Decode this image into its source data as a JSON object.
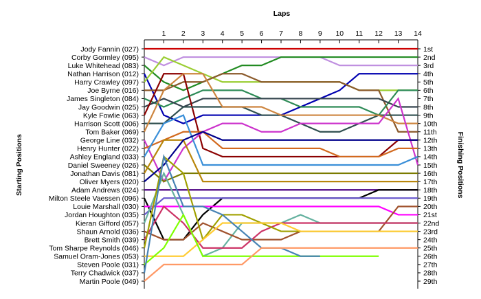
{
  "chart_data": {
    "type": "line",
    "title": "",
    "xlabel": "Laps",
    "ylabel_left": "Starting Positions",
    "ylabel_right": "Finishing Positions",
    "x": [
      0,
      1,
      2,
      3,
      4,
      5,
      6,
      7,
      8,
      9,
      10,
      11,
      12,
      13,
      14
    ],
    "x_tick_labels": [
      "1",
      "2",
      "3",
      "4",
      "5",
      "6",
      "7",
      "8",
      "9",
      "10",
      "11",
      "12",
      "13",
      "14"
    ],
    "ylim": [
      1,
      29
    ],
    "y_reversed": true,
    "grid": false,
    "starting_labels": [
      "Jody Fannin (027)",
      "Corby Gormley (095)",
      "Luke Whitehead (083)",
      "Nathan Harrison (012)",
      "Harry Crawley (097)",
      "Joe Byrne (016)",
      "James Singleton (084)",
      "Jay Goodwin (025)",
      "Kyle Fowlie (063)",
      "Harrison Scott (006)",
      "Tom Baker (069)",
      "George Line (032)",
      "Henry Hunter (022)",
      "Ashley England (033)",
      "Daniel Sweeney (026)",
      "Jonathan Davis (081)",
      "Oliver Myers (020)",
      "Adam Andrews (024)",
      "Milton Steele Vaessen (096)",
      "Louie Marshall (030)",
      "Jordan Houghton (035)",
      "Kieran Gifford (057)",
      "Shaun Arnold (036)",
      "Brett Smith (039)",
      "Tom Sharpe Reynolds (046)",
      "Samuel Oram-Jones (053)",
      "Steven Poole (031)",
      "Terry Chadwick (037)",
      "Martin Poole (049)"
    ],
    "finishing_labels": [
      "1st",
      "2nd",
      "3rd",
      "4th",
      "5th",
      "6th",
      "7th",
      "8th",
      "9th",
      "10th",
      "11th",
      "12th",
      "13th",
      "14th",
      "15th",
      "16th",
      "17th",
      "18th",
      "19th",
      "20th",
      "21st",
      "22nd",
      "23rd",
      "24th",
      "25th",
      "26th",
      "27th",
      "28th",
      "29th"
    ],
    "series": [
      {
        "color": "#cc0000",
        "values": [
          1,
          1,
          1,
          1,
          1,
          1,
          1,
          1,
          1,
          1,
          1,
          1,
          1,
          1,
          1
        ]
      },
      {
        "color": "#c090e0",
        "values": [
          2,
          3,
          2,
          2,
          2,
          2,
          2,
          2,
          2,
          2,
          3,
          3,
          3,
          3,
          3
        ]
      },
      {
        "color": "#228b22",
        "values": [
          3,
          5,
          6,
          5,
          4,
          3,
          3,
          2,
          2,
          2,
          2,
          2,
          2,
          2,
          2
        ]
      },
      {
        "color": "#0000b0",
        "values": [
          4,
          9,
          10,
          9,
          9,
          9,
          9,
          9,
          8,
          7,
          6,
          4,
          4,
          4,
          4
        ]
      },
      {
        "color": "#9acd32",
        "values": [
          5,
          2,
          3,
          4,
          5,
          5,
          5,
          5,
          5,
          5,
          5,
          6,
          6,
          6,
          6
        ]
      },
      {
        "color": "#8b5a2b",
        "values": [
          6,
          6,
          5,
          5,
          4,
          4,
          5,
          5,
          5,
          5,
          5,
          6,
          6,
          11,
          11
        ]
      },
      {
        "color": "#2e8b57",
        "values": [
          7,
          8,
          7,
          6,
          6,
          6,
          7,
          7,
          8,
          8,
          8,
          8,
          9,
          6,
          6
        ]
      },
      {
        "color": "#36454f",
        "values": [
          8,
          7,
          8,
          7,
          7,
          7,
          7,
          7,
          7,
          7,
          7,
          7,
          7,
          8,
          8
        ]
      },
      {
        "color": "#8b0000",
        "values": [
          9,
          4,
          4,
          13,
          14,
          14,
          14,
          14,
          14,
          14,
          14,
          14,
          14,
          12,
          12
        ]
      },
      {
        "color": "#2f4f4f",
        "values": [
          10,
          10,
          8,
          8,
          8,
          8,
          9,
          9,
          10,
          11,
          11,
          10,
          9,
          9,
          9
        ]
      },
      {
        "color": "#cd853f",
        "values": [
          11,
          6,
          4,
          4,
          8,
          8,
          8,
          9,
          9,
          9,
          9,
          9,
          9,
          10,
          10
        ]
      },
      {
        "color": "#cc33cc",
        "values": [
          12,
          17,
          13,
          11,
          10,
          10,
          11,
          11,
          10,
          10,
          10,
          10,
          10,
          7,
          15
        ]
      },
      {
        "color": "#d2691e",
        "values": [
          13,
          12,
          11,
          11,
          13,
          13,
          13,
          13,
          13,
          13,
          14,
          14,
          14,
          13,
          13
        ]
      },
      {
        "color": "#3a8fd8",
        "values": [
          14,
          10,
          9,
          15,
          15,
          15,
          15,
          15,
          15,
          15,
          15,
          15,
          15,
          15,
          14
        ]
      },
      {
        "color": "#7b7b00",
        "values": [
          15,
          17,
          16,
          16,
          16,
          16,
          16,
          16,
          16,
          16,
          16,
          16,
          16,
          16,
          16
        ]
      },
      {
        "color": "#b8860b",
        "values": [
          16,
          12,
          12,
          17,
          17,
          17,
          17,
          17,
          17,
          17,
          17,
          17,
          17,
          17,
          17
        ]
      },
      {
        "color": "#00008b",
        "values": [
          17,
          15,
          12,
          11,
          12,
          12,
          12,
          12,
          12,
          12,
          12,
          12,
          12,
          12,
          12
        ]
      },
      {
        "color": "#4b0082",
        "values": [
          18,
          18,
          18,
          18,
          18,
          18,
          18,
          18,
          18,
          18,
          18,
          18,
          18,
          18,
          18
        ]
      },
      {
        "color": "#000000",
        "values": [
          19,
          24,
          24,
          21,
          19,
          19,
          19,
          19,
          19,
          19,
          19,
          19,
          18,
          18,
          18
        ]
      },
      {
        "color": "#ff00ff",
        "values": [
          20,
          20,
          20,
          20,
          20,
          20,
          20,
          20,
          20,
          20,
          20,
          20,
          20,
          21,
          21
        ]
      },
      {
        "color": "#6a5acd",
        "values": [
          21,
          19,
          19,
          19,
          19,
          19,
          19,
          19,
          19,
          19,
          19,
          19,
          19,
          19,
          19
        ]
      },
      {
        "color": "#66b2a0",
        "values": [
          22,
          16,
          21,
          26,
          25,
          22,
          22,
          22,
          21,
          22,
          22,
          22,
          22,
          22,
          22
        ]
      },
      {
        "color": "#a0522d",
        "values": [
          23,
          24,
          24,
          22,
          23,
          24,
          24,
          24,
          23,
          23,
          23,
          23,
          23,
          20,
          20
        ]
      },
      {
        "color": "#cc3366",
        "values": [
          24,
          20,
          22,
          25,
          25,
          25,
          23,
          22,
          22,
          22,
          22,
          22,
          22,
          22,
          22
        ]
      },
      {
        "color": "#a0a000",
        "values": [
          25,
          14,
          16,
          24,
          21,
          21,
          22,
          23,
          23,
          23,
          23,
          23,
          23,
          23,
          23
        ]
      },
      {
        "color": "#ffcc33",
        "values": [
          26,
          26,
          26,
          24,
          22,
          22,
          22,
          22,
          23,
          23,
          23,
          23,
          23,
          23,
          23
        ]
      },
      {
        "color": "#7fff00",
        "values": [
          27,
          25,
          21,
          26,
          26,
          26,
          26,
          26,
          26,
          26,
          26,
          26,
          26,
          null,
          null
        ]
      },
      {
        "color": "#4682b4",
        "values": [
          28,
          14,
          20,
          20,
          21,
          23,
          25,
          25,
          26,
          26,
          null,
          null,
          null,
          null,
          null
        ]
      },
      {
        "color": "#ff9966",
        "values": [
          29,
          27,
          27,
          27,
          27,
          27,
          25,
          25,
          25,
          25,
          25,
          25,
          25,
          25,
          25
        ]
      }
    ]
  }
}
